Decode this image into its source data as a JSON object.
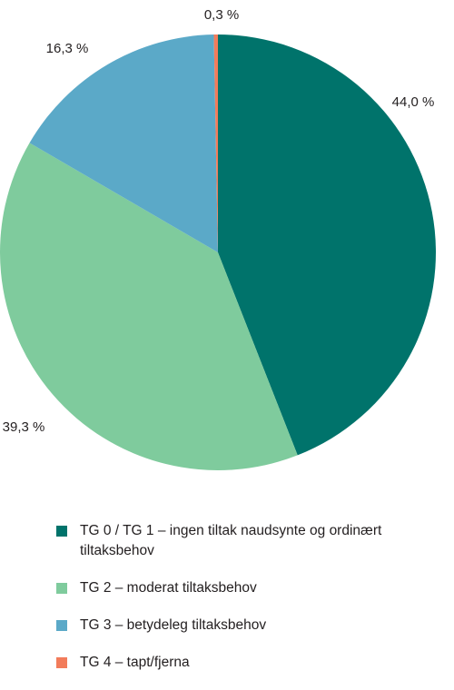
{
  "chart_data": {
    "type": "pie",
    "slices": [
      {
        "label": "TG 0 / TG 1 – ingen tiltak naudsynte og ordinært tiltaksbehov",
        "value": 44.0,
        "value_label": "44,0 %",
        "color": "#00736b"
      },
      {
        "label": "TG 2 – moderat tiltaksbehov",
        "value": 39.3,
        "value_label": "39,3 %",
        "color": "#7fcb9d"
      },
      {
        "label": "TG 3 – betydeleg tiltaksbehov",
        "value": 16.3,
        "value_label": "16,3 %",
        "color": "#5ba9c8"
      },
      {
        "label": "TG 4 – tapt/fjerna",
        "value": 0.3,
        "value_label": "0,3 %",
        "color": "#f27c5b"
      }
    ],
    "start": "top",
    "direction": "clockwise",
    "legend_position": "bottom"
  }
}
